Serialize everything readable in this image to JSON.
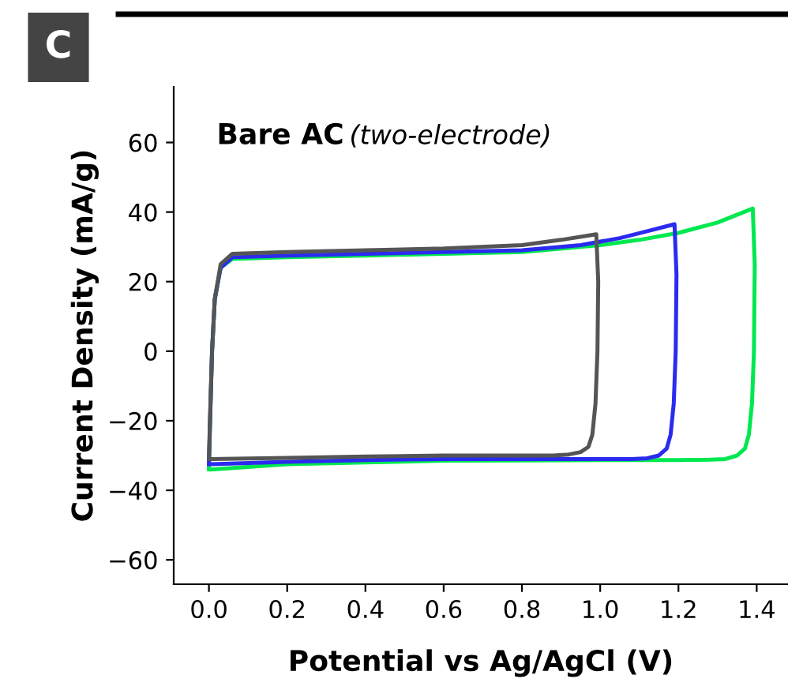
{
  "chart_data": {
    "type": "line",
    "title": "Bare AC",
    "subtitle": "(two-electrode)",
    "xlabel": "Potential vs Ag/AgCl (V)",
    "ylabel": "Current Density (mA/g)",
    "annotations": [
      "C"
    ],
    "xlim": [
      -0.09,
      1.48
    ],
    "ylim": [
      -67,
      76
    ],
    "xticks": [
      {
        "value": 0,
        "label": "0.0"
      },
      0.2,
      0.4,
      0.6,
      0.8,
      {
        "value": 1,
        "label": "1.0"
      },
      1.2,
      1.4
    ],
    "yticks": [
      {
        "value": -60,
        "label": "−60"
      },
      {
        "value": -40,
        "label": "−40"
      },
      {
        "value": -20,
        "label": "−20"
      },
      0,
      20,
      40,
      60
    ],
    "grid": false,
    "legend": false,
    "marker": "none",
    "line_style": "solid",
    "series": [
      {
        "color": "#00e850",
        "x": [
          0.0,
          0.003,
          0.008,
          0.015,
          0.03,
          0.06,
          0.2,
          0.4,
          0.6,
          0.8,
          1.0,
          1.1,
          1.2,
          1.3,
          1.39,
          1.395,
          1.393,
          1.388,
          1.38,
          1.37,
          1.35,
          1.32,
          1.28,
          1.2,
          1.0,
          0.8,
          0.6,
          0.4,
          0.2,
          0.01
        ],
        "values": [
          -34,
          -20,
          0,
          15,
          24,
          26.5,
          27,
          27.5,
          28,
          28.5,
          30.5,
          32,
          34,
          37,
          41,
          25,
          0,
          -15,
          -24,
          -28,
          -30,
          -31,
          -31.2,
          -31.3,
          -31.3,
          -31.4,
          -31.5,
          -32,
          -32.5,
          -34
        ]
      },
      {
        "color": "#2b2bf0",
        "x": [
          0.0,
          0.003,
          0.008,
          0.015,
          0.03,
          0.06,
          0.2,
          0.4,
          0.6,
          0.8,
          0.95,
          1.05,
          1.12,
          1.19,
          1.195,
          1.193,
          1.188,
          1.18,
          1.17,
          1.15,
          1.12,
          1.08,
          1.0,
          0.8,
          0.6,
          0.4,
          0.2,
          0.01
        ],
        "values": [
          -32.5,
          -20,
          0,
          15,
          24,
          27,
          27.5,
          28,
          28.5,
          29,
          30.5,
          32.5,
          34.5,
          36.5,
          22,
          0,
          -15,
          -24,
          -28,
          -30,
          -30.8,
          -31,
          -31,
          -31,
          -31,
          -31.3,
          -31.8,
          -32.5
        ]
      },
      {
        "color": "#555555",
        "x": [
          0.0,
          0.003,
          0.008,
          0.015,
          0.03,
          0.06,
          0.2,
          0.4,
          0.6,
          0.8,
          0.9,
          0.99,
          0.995,
          0.993,
          0.988,
          0.98,
          0.97,
          0.95,
          0.92,
          0.88,
          0.8,
          0.6,
          0.4,
          0.2,
          0.01
        ],
        "values": [
          -31,
          -18,
          0,
          15,
          25,
          28,
          28.5,
          29,
          29.5,
          30.5,
          32,
          33.6,
          20,
          0,
          -15,
          -24,
          -27.5,
          -29,
          -29.7,
          -30,
          -30,
          -30,
          -30.3,
          -30.7,
          -31
        ]
      }
    ]
  }
}
